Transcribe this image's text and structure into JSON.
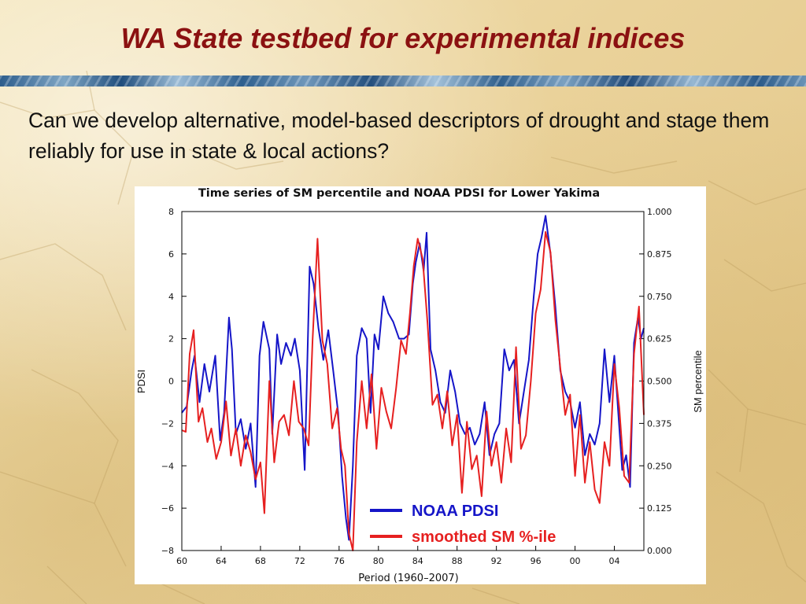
{
  "slide": {
    "title": "WA State testbed for experimental indices",
    "question": "Can we develop alternative, model-based descriptors of drought and stage them reliably for use in state & local actions?"
  },
  "colors": {
    "title": "#8b1111",
    "pdsi_series": "#1515c8",
    "sm_series": "#e62020"
  },
  "chart_data": {
    "type": "line",
    "title": "Time series of SM percentile and NOAA PDSI for Lower Yakima",
    "xlabel": "Period (1960–2007)",
    "ylabel_left": "PDSI",
    "ylabel_right": "SM percentile",
    "xlim": [
      1960,
      2007
    ],
    "ylim_left": [
      -8,
      8
    ],
    "ylim_right": [
      0,
      1
    ],
    "x_ticks": [
      1960,
      1964,
      1968,
      1972,
      1976,
      1980,
      1984,
      1988,
      1992,
      1996,
      2000,
      2004
    ],
    "x_tick_labels": [
      "60",
      "64",
      "68",
      "72",
      "76",
      "80",
      "84",
      "88",
      "92",
      "96",
      "00",
      "04"
    ],
    "y_ticks_left": [
      8,
      6,
      4,
      2,
      0,
      -2,
      -4,
      -6,
      -8
    ],
    "y_tick_labels_left": [
      "8",
      "6",
      "4",
      "2",
      "0",
      "−2",
      "−4",
      "−6",
      "−8"
    ],
    "y_ticks_right": [
      1,
      0.875,
      0.75,
      0.625,
      0.5,
      0.375,
      0.25,
      0.125,
      0
    ],
    "y_tick_labels_right": [
      "1.000",
      "0.875",
      "0.750",
      "0.625",
      "0.500",
      "0.375",
      "0.250",
      "0.125",
      "0.000"
    ],
    "legend_position": "bottom-right inside plot",
    "grid": false,
    "series": [
      {
        "name": "NOAA PDSI",
        "axis": "left",
        "color": "#1515c8",
        "x": [
          1960.0,
          1960.5,
          1961.0,
          1961.3,
          1961.8,
          1962.3,
          1962.8,
          1963.4,
          1963.9,
          1964.3,
          1964.8,
          1965.1,
          1965.5,
          1966.0,
          1966.5,
          1967.0,
          1967.5,
          1967.9,
          1968.3,
          1968.9,
          1969.2,
          1969.7,
          1970.1,
          1970.6,
          1971.1,
          1971.5,
          1972.0,
          1972.5,
          1973.0,
          1973.4,
          1973.9,
          1974.4,
          1974.9,
          1975.4,
          1975.9,
          1976.3,
          1976.7,
          1977.0,
          1977.4,
          1977.8,
          1978.3,
          1978.8,
          1979.2,
          1979.6,
          1980.0,
          1980.5,
          1981.0,
          1981.5,
          1982.1,
          1982.6,
          1983.1,
          1983.5,
          1983.8,
          1984.2,
          1984.6,
          1984.9,
          1985.3,
          1985.8,
          1986.3,
          1986.8,
          1987.3,
          1987.8,
          1988.3,
          1988.8,
          1989.3,
          1989.8,
          1990.3,
          1990.8,
          1991.3,
          1991.8,
          1992.3,
          1992.8,
          1993.3,
          1993.8,
          1994.3,
          1994.8,
          1995.3,
          1995.8,
          1996.2,
          1996.6,
          1997.0,
          1997.5,
          1998.0,
          1998.5,
          1999.0,
          1999.5,
          2000.0,
          2000.5,
          2001.0,
          2001.5,
          2002.0,
          2002.5,
          2003.0,
          2003.5,
          2004.0,
          2004.4,
          2004.8,
          2005.2,
          2005.6,
          2006.0,
          2006.4,
          2006.7,
          2007.0
        ],
        "y": [
          -1.5,
          -1.2,
          0.5,
          1.2,
          -1.0,
          0.8,
          -0.5,
          1.2,
          -2.8,
          -1.5,
          3.0,
          1.5,
          -2.5,
          -1.8,
          -3.2,
          -2.0,
          -5.0,
          1.2,
          2.8,
          1.5,
          -2.5,
          2.2,
          0.8,
          1.8,
          1.2,
          2.0,
          0.5,
          -4.2,
          5.4,
          4.6,
          2.5,
          1.0,
          2.4,
          0.5,
          -1.5,
          -4.5,
          -6.5,
          -7.5,
          -4.0,
          1.2,
          2.5,
          2.0,
          -1.5,
          2.2,
          1.5,
          4.0,
          3.2,
          2.8,
          2.0,
          2.0,
          2.2,
          4.6,
          5.6,
          6.5,
          5.2,
          7.0,
          1.5,
          0.5,
          -1.0,
          -1.5,
          0.5,
          -0.5,
          -2.0,
          -2.5,
          -2.2,
          -3.0,
          -2.5,
          -1.0,
          -3.5,
          -2.5,
          -2.0,
          1.5,
          0.5,
          1.0,
          -2.0,
          -0.5,
          1.0,
          4.0,
          6.0,
          6.8,
          7.8,
          6.0,
          3.5,
          0.5,
          -0.5,
          -1.0,
          -2.2,
          -1.0,
          -3.5,
          -2.5,
          -3.0,
          -2.0,
          1.5,
          -1.0,
          1.2,
          -1.5,
          -4.2,
          -3.5,
          -5.0,
          1.8,
          3.0,
          2.0,
          2.5
        ]
      },
      {
        "name": "smoothed SM %-ile",
        "axis": "right",
        "color": "#e62020",
        "x": [
          1960.0,
          1960.4,
          1960.8,
          1961.2,
          1961.7,
          1962.1,
          1962.6,
          1963.0,
          1963.5,
          1964.0,
          1964.5,
          1965.0,
          1965.5,
          1966.0,
          1966.5,
          1967.0,
          1967.5,
          1968.0,
          1968.4,
          1968.9,
          1969.4,
          1969.9,
          1970.4,
          1970.9,
          1971.4,
          1971.9,
          1972.4,
          1972.9,
          1973.3,
          1973.8,
          1974.3,
          1974.8,
          1975.3,
          1975.8,
          1976.2,
          1976.6,
          1977.0,
          1977.4,
          1977.8,
          1978.3,
          1978.8,
          1979.3,
          1979.8,
          1980.3,
          1980.8,
          1981.3,
          1981.8,
          1982.3,
          1982.8,
          1983.2,
          1983.6,
          1984.0,
          1984.5,
          1985.0,
          1985.5,
          1986.0,
          1986.5,
          1987.0,
          1987.5,
          1988.0,
          1988.5,
          1989.0,
          1989.5,
          1990.0,
          1990.5,
          1991.0,
          1991.5,
          1992.0,
          1992.5,
          1993.0,
          1993.5,
          1994.0,
          1994.5,
          1995.0,
          1995.5,
          1996.0,
          1996.5,
          1997.0,
          1997.5,
          1998.0,
          1998.5,
          1999.0,
          1999.5,
          2000.0,
          2000.5,
          2001.0,
          2001.5,
          2002.0,
          2002.5,
          2003.0,
          2003.5,
          2004.0,
          2004.5,
          2005.0,
          2005.5,
          2006.0,
          2006.5,
          2007.0
        ],
        "y": [
          0.355,
          0.35,
          0.58,
          0.65,
          0.38,
          0.42,
          0.32,
          0.36,
          0.27,
          0.32,
          0.44,
          0.28,
          0.36,
          0.25,
          0.34,
          0.29,
          0.21,
          0.26,
          0.11,
          0.5,
          0.26,
          0.38,
          0.4,
          0.34,
          0.5,
          0.38,
          0.36,
          0.31,
          0.62,
          0.92,
          0.62,
          0.55,
          0.36,
          0.42,
          0.3,
          0.25,
          0.05,
          0.0,
          0.32,
          0.5,
          0.36,
          0.52,
          0.3,
          0.48,
          0.41,
          0.36,
          0.48,
          0.62,
          0.58,
          0.7,
          0.84,
          0.92,
          0.86,
          0.67,
          0.43,
          0.46,
          0.36,
          0.47,
          0.31,
          0.4,
          0.17,
          0.38,
          0.24,
          0.28,
          0.16,
          0.41,
          0.25,
          0.32,
          0.2,
          0.36,
          0.26,
          0.6,
          0.3,
          0.34,
          0.5,
          0.7,
          0.77,
          0.94,
          0.88,
          0.68,
          0.54,
          0.4,
          0.46,
          0.22,
          0.4,
          0.2,
          0.32,
          0.18,
          0.14,
          0.32,
          0.25,
          0.55,
          0.42,
          0.22,
          0.2,
          0.58,
          0.72,
          0.4
        ]
      }
    ]
  }
}
